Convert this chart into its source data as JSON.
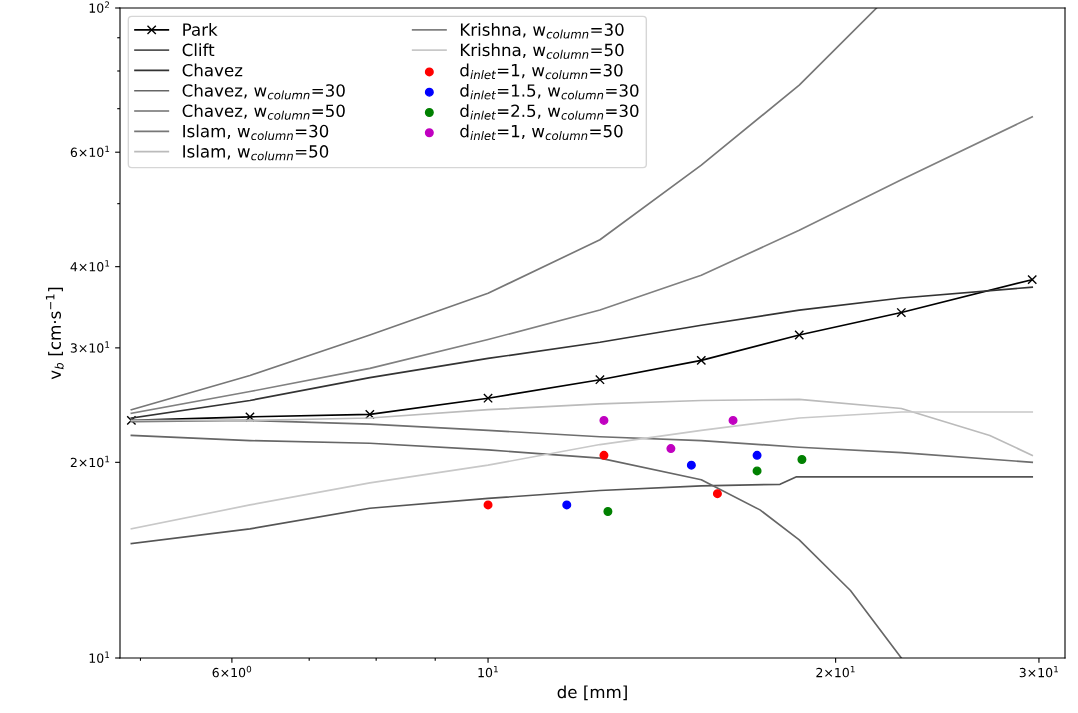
{
  "chart_data": {
    "type": "line",
    "xlabel": "de [mm]",
    "ylabel": "v$_{b}$ [cm·s$^{−1}$]",
    "log": "xy",
    "grid": false,
    "legend": "top left",
    "xlim": [
      4.8,
      31.6
    ],
    "ylim": [
      10,
      100
    ],
    "xticks": [
      {
        "value": 5,
        "label": null
      },
      {
        "value": 6,
        "label": "6×10$^{0}$"
      },
      {
        "value": 7,
        "label": null
      },
      {
        "value": 8,
        "label": null
      },
      {
        "value": 9,
        "label": null
      },
      {
        "value": 10,
        "label": "10$^{1}$"
      },
      {
        "value": 20,
        "label": "2×10$^{1}$"
      },
      {
        "value": 30,
        "label": "3×10$^{1}$"
      }
    ],
    "yticks": [
      {
        "value": 10,
        "label": "10$^{1}$"
      },
      {
        "value": 20,
        "label": "2×10$^{1}$"
      },
      {
        "value": 30,
        "label": "3×10$^{1}$"
      },
      {
        "value": 40,
        "label": "4×10$^{1}$"
      },
      {
        "value": 50,
        "label": null
      },
      {
        "value": 60,
        "label": "6×10$^{1}$"
      },
      {
        "value": 70,
        "label": null
      },
      {
        "value": 80,
        "label": null
      },
      {
        "value": 90,
        "label": null
      },
      {
        "value": 100,
        "label": "10$^{2}$"
      }
    ],
    "series": [
      {
        "name": "Park",
        "color": "#000000",
        "marker": "cross",
        "x": [
          4.91,
          6.22,
          7.9,
          10,
          12.5,
          15.3,
          18.6,
          22.8,
          29.6
        ],
        "values": [
          23.2,
          23.5,
          23.7,
          25.1,
          26.8,
          28.7,
          31.4,
          34.0,
          38.2
        ]
      },
      {
        "name": "Clift",
        "color": "#555555",
        "marker": "none",
        "x": [
          4.91,
          6.22,
          7.9,
          10,
          12.5,
          15.3,
          17.9,
          18.5,
          29.6
        ],
        "values": [
          15.0,
          15.8,
          17.0,
          17.6,
          18.1,
          18.4,
          18.5,
          19.0,
          19.0
        ]
      },
      {
        "name": "Chavez",
        "color": "#333333",
        "marker": "none",
        "x": [
          4.91,
          6.22,
          7.9,
          10,
          12.5,
          15.3,
          18.6,
          22.8,
          29.6
        ],
        "values": [
          23.4,
          24.9,
          27.0,
          28.9,
          30.6,
          32.5,
          34.3,
          35.8,
          37.2
        ]
      },
      {
        "name": "Chavez, w$_{column}$=30",
        "color": "#666666",
        "marker": "none",
        "x": [
          4.91,
          6.22,
          7.9,
          10,
          12.5,
          15.3,
          17.2,
          18.6,
          20.6,
          22.8
        ],
        "values": [
          22.0,
          21.6,
          21.4,
          20.9,
          20.3,
          18.8,
          16.9,
          15.2,
          12.7,
          10.0
        ]
      },
      {
        "name": "Chavez, w$_{column}$=50",
        "color": "#6e6e6e",
        "marker": "none",
        "x": [
          4.91,
          6.22,
          7.9,
          10,
          12.5,
          15.3,
          18.6,
          22.8,
          29.6
        ],
        "values": [
          23.1,
          23.2,
          22.9,
          22.4,
          21.9,
          21.6,
          21.1,
          20.7,
          20.0
        ]
      },
      {
        "name": "Islam, w$_{column}$=30",
        "color": "#777777",
        "marker": "none",
        "x": [
          4.91,
          6.22,
          7.9,
          10,
          12.5,
          15.3,
          18.6,
          21.7
        ],
        "values": [
          24.1,
          27.2,
          31.4,
          36.4,
          44.0,
          57.3,
          76.1,
          100
        ]
      },
      {
        "name": "Islam, w$_{column}$=50",
        "color": "#bbbbbb",
        "marker": "none",
        "x": [
          4.91,
          6.22,
          7.9,
          10,
          12.5,
          15.3,
          18.6,
          22.8,
          27.2,
          29.6
        ],
        "values": [
          23.2,
          23.2,
          23.4,
          24.1,
          24.6,
          24.9,
          25.0,
          24.2,
          22.0,
          20.5
        ]
      },
      {
        "name": "Krishna, w$_{column}$=30",
        "color": "#808080",
        "marker": "none",
        "x": [
          4.91,
          6.22,
          7.9,
          10,
          12.5,
          15.3,
          18.6,
          22.8,
          29.6
        ],
        "values": [
          23.8,
          25.7,
          27.9,
          30.9,
          34.3,
          38.8,
          45.5,
          54.4,
          68.0
        ]
      },
      {
        "name": "Krishna, w$_{column}$=50",
        "color": "#c8c8c8",
        "marker": "none",
        "x": [
          4.91,
          6.22,
          7.9,
          10,
          12.5,
          15.3,
          18.6,
          22.8,
          29.6
        ],
        "values": [
          15.8,
          17.2,
          18.6,
          19.8,
          21.3,
          22.4,
          23.4,
          23.9,
          23.9
        ]
      },
      {
        "name": "d$_{inlet}$=1, w$_{column}$=30",
        "type": "scatter",
        "color": "#ff0000",
        "marker": "circle",
        "x": [
          10.0,
          12.6,
          15.8
        ],
        "values": [
          17.2,
          20.5,
          17.9
        ]
      },
      {
        "name": "d$_{inlet}$=1.5, w$_{column}$=30",
        "type": "scatter",
        "color": "#0000ff",
        "marker": "circle",
        "x": [
          11.7,
          15.0,
          17.1
        ],
        "values": [
          17.2,
          19.8,
          20.5
        ]
      },
      {
        "name": "d$_{inlet}$=2.5, w$_{column}$=30",
        "type": "scatter",
        "color": "#008000",
        "marker": "circle",
        "x": [
          12.7,
          17.1,
          18.7
        ],
        "values": [
          16.8,
          19.4,
          20.2
        ]
      },
      {
        "name": "d$_{inlet}$=1, w$_{column}$=50",
        "type": "scatter",
        "color": "#c000c0",
        "marker": "circle",
        "x": [
          12.6,
          14.4,
          16.3
        ],
        "values": [
          23.2,
          21.0,
          23.2
        ]
      }
    ]
  }
}
